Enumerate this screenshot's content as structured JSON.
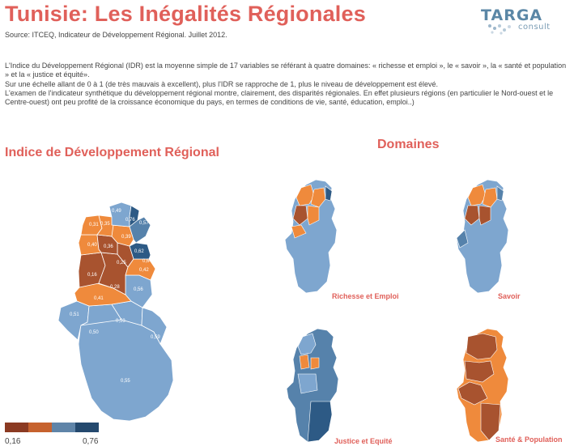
{
  "header": {
    "title": "Tunisie: Les Inégalités Régionales",
    "source": "Source:  ITCEQ, Indicateur de Développement Régional. Juillet 2012."
  },
  "logo": {
    "word": "TARGA",
    "sub": "consult"
  },
  "intro": {
    "p1": "L'Indice du Développement Régional (IDR) est la moyenne simple de 17 variables se référant à quatre domaines:  « richesse et emploi », le « savoir », la « santé et population » et la « justice et équité».",
    "p2": "Sur une échelle allant de 0 à 1 (de très mauvais à excellent), plus l'IDR se rapproche de 1, plus le niveau de développement est élevé.",
    "p3": "L'examen de l'indicateur synthétique du développement régional montre, clairement, des disparités régionales. En effet plusieurs régions (en particulier le Nord-ouest et le Centre-ouest) ont peu profité de la croissance économique du pays, en termes de conditions de vie, santé, éducation, emploi..)"
  },
  "main_map": {
    "title": "Indice de Développement Régional",
    "regions": [
      {
        "label": "0,49",
        "value": 0.49
      },
      {
        "label": "0,76",
        "value": 0.76
      },
      {
        "label": "0,57",
        "value": 0.57
      },
      {
        "label": "0,31",
        "value": 0.31
      },
      {
        "label": "0,35",
        "value": 0.35
      },
      {
        "label": "0,39",
        "value": 0.39
      },
      {
        "label": "0,40",
        "value": 0.4
      },
      {
        "label": "0,36",
        "value": 0.36
      },
      {
        "label": "0,25",
        "value": 0.25
      },
      {
        "label": "0,62",
        "value": 0.62
      },
      {
        "label": "0,64",
        "value": 0.64
      },
      {
        "label": "0,42",
        "value": 0.42
      },
      {
        "label": "0,16",
        "value": 0.16
      },
      {
        "label": "0,28",
        "value": 0.28
      },
      {
        "label": "0,56",
        "value": 0.56
      },
      {
        "label": "0,41",
        "value": 0.41
      },
      {
        "label": "0,51",
        "value": 0.51
      },
      {
        "label": "0,53",
        "value": 0.53
      },
      {
        "label": "0,50",
        "value": 0.5
      },
      {
        "label": "0,59",
        "value": 0.59
      },
      {
        "label": "0,55",
        "value": 0.55
      }
    ]
  },
  "domains": {
    "title": "Domaines",
    "maps": [
      {
        "label": "Richesse et Emploi"
      },
      {
        "label": "Savoir"
      },
      {
        "label": "Justice et Equité"
      },
      {
        "label": "Santé & Population"
      }
    ]
  },
  "legend": {
    "min": "0,16",
    "max": "0,76",
    "colors": [
      "#8b3a22",
      "#c6622e",
      "#5f84a8",
      "#24496e"
    ]
  },
  "colors": {
    "title": "#e0605a",
    "dark_orange": "#a8532f",
    "orange": "#ef8a3c",
    "light_blue": "#7ea6cf",
    "mid_blue": "#5682ab",
    "dark_blue": "#2d5a85"
  }
}
